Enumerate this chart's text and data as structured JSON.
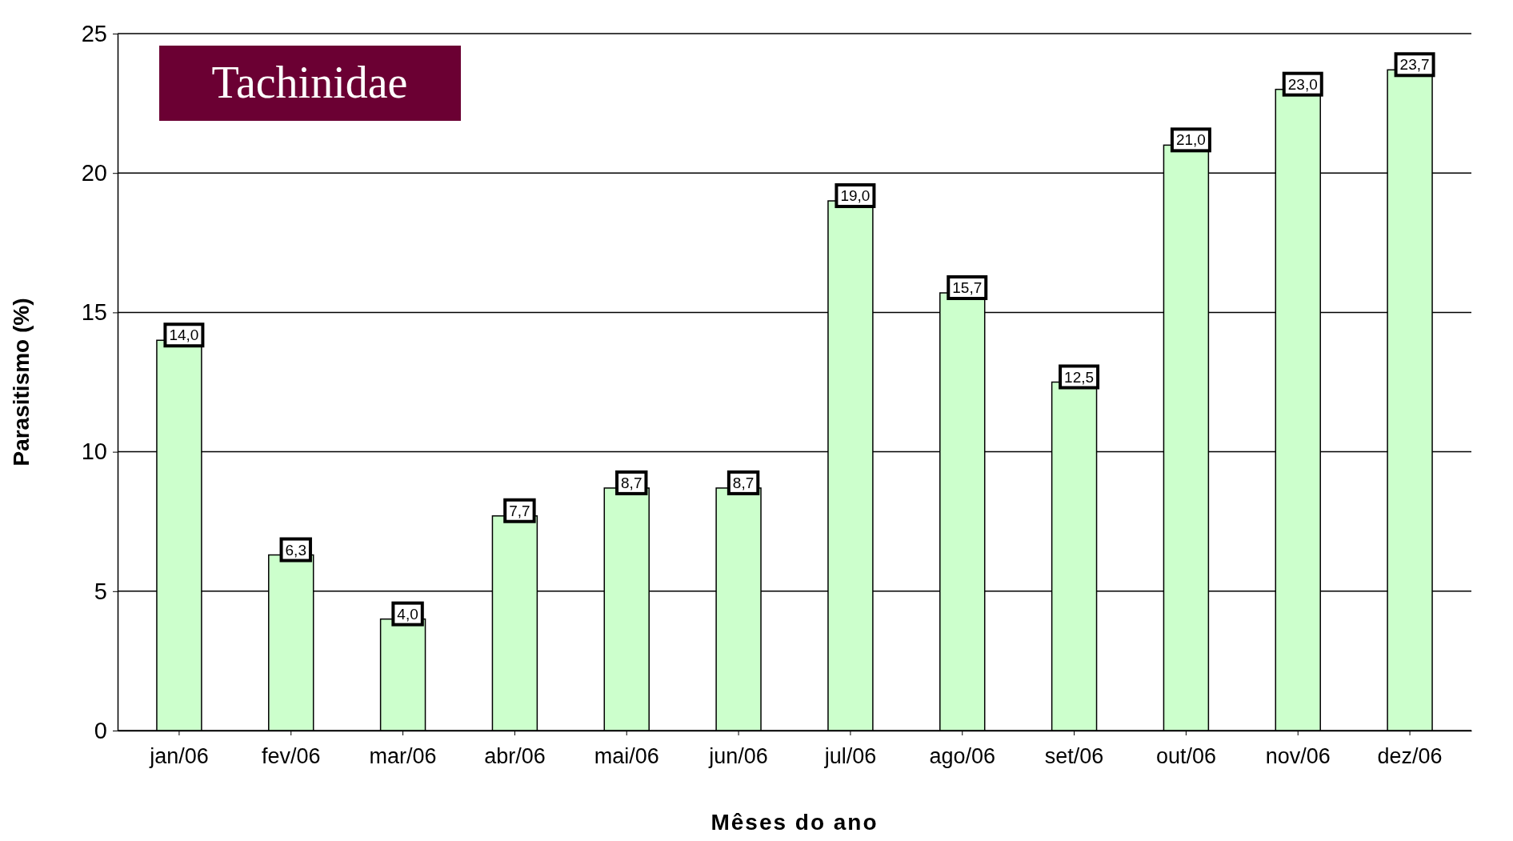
{
  "chart_data": {
    "type": "bar",
    "title": "Tachinidae",
    "xlabel": "Mêses do ano",
    "ylabel": "Parasitismo (%)",
    "categories": [
      "jan/06",
      "fev/06",
      "mar/06",
      "abr/06",
      "mai/06",
      "jun/06",
      "jul/06",
      "ago/06",
      "set/06",
      "out/06",
      "nov/06",
      "dez/06"
    ],
    "values": [
      14.0,
      6.3,
      4.0,
      7.7,
      8.7,
      8.7,
      19.0,
      15.7,
      12.5,
      21.0,
      23.0,
      23.7
    ],
    "value_labels": [
      "14,0",
      "6,3",
      "4,0",
      "7,7",
      "8,7",
      "8,7",
      "19,0",
      "15,7",
      "12,5",
      "21,0",
      "23,0",
      "23,7"
    ],
    "color": "#ccffcc",
    "ylim": [
      0,
      25
    ],
    "yticks": [
      0,
      5,
      10,
      15,
      20,
      25
    ],
    "grid": "y"
  }
}
